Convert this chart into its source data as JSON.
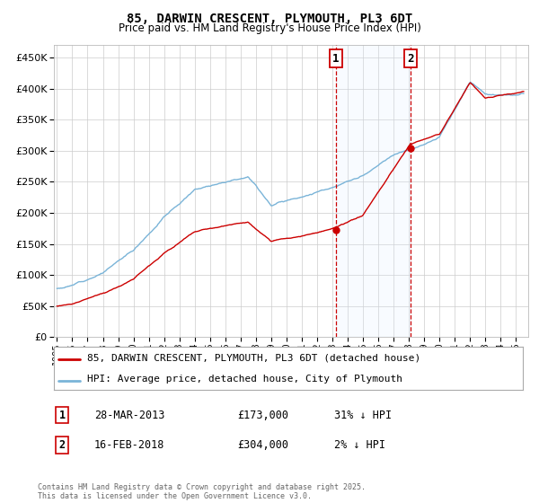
{
  "title": "85, DARWIN CRESCENT, PLYMOUTH, PL3 6DT",
  "subtitle": "Price paid vs. HM Land Registry's House Price Index (HPI)",
  "legend_line1": "85, DARWIN CRESCENT, PLYMOUTH, PL3 6DT (detached house)",
  "legend_line2": "HPI: Average price, detached house, City of Plymouth",
  "annotation1_label": "1",
  "annotation1_date": "28-MAR-2013",
  "annotation1_price": "£173,000",
  "annotation1_hpi": "31% ↓ HPI",
  "annotation2_label": "2",
  "annotation2_date": "16-FEB-2018",
  "annotation2_price": "£304,000",
  "annotation2_hpi": "2% ↓ HPI",
  "footnote": "Contains HM Land Registry data © Crown copyright and database right 2025.\nThis data is licensed under the Open Government Licence v3.0.",
  "hpi_color": "#7ab4d8",
  "price_color": "#cc0000",
  "vline_color": "#cc0000",
  "shade_color": "#ddeeff",
  "bg_color": "#ffffff",
  "grid_color": "#cccccc",
  "ylim": [
    0,
    470000
  ],
  "yticks": [
    0,
    50000,
    100000,
    150000,
    200000,
    250000,
    300000,
    350000,
    400000,
    450000
  ],
  "sale1_year": 2013.23,
  "sale2_year": 2018.12,
  "sale1_price": 173000,
  "sale2_price": 304000
}
